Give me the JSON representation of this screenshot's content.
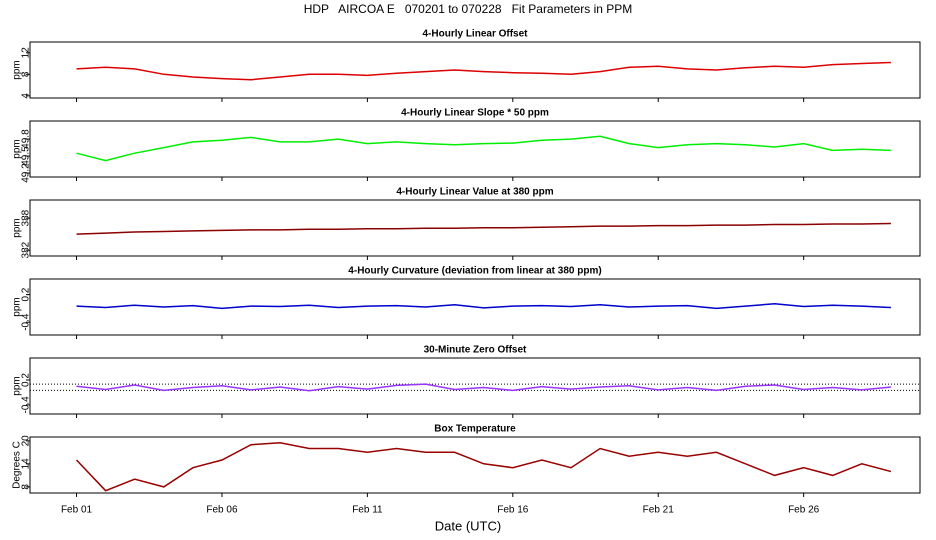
{
  "title": "HDP   AIRCOA E   070201 to 070228   Fit Parameters in PPM",
  "xlabel": "Date (UTC)",
  "xlim": [
    -1.6,
    29
  ],
  "xticks": [
    {
      "value": 0,
      "label": "Feb 01"
    },
    {
      "value": 5,
      "label": "Feb 06"
    },
    {
      "value": 10,
      "label": "Feb 11"
    },
    {
      "value": 15,
      "label": "Feb 16"
    },
    {
      "value": 20,
      "label": "Feb 21"
    },
    {
      "value": 25,
      "label": "Feb 26"
    }
  ],
  "chart_data": [
    {
      "type": "line",
      "title": "4-Hourly Linear Offset",
      "ylabel": "ppm",
      "color": "#dd0000",
      "ylim": [
        3.6,
        14
      ],
      "yticks": [
        4,
        8,
        12
      ],
      "x": [
        0,
        1,
        2,
        3,
        4,
        5,
        6,
        7,
        8,
        9,
        10,
        11,
        12,
        13,
        14,
        15,
        16,
        17,
        18,
        19,
        20,
        21,
        22,
        23,
        24,
        25,
        26,
        27,
        28
      ],
      "values": [
        9,
        9.3,
        9,
        8,
        7.5,
        7.2,
        7,
        7.5,
        8,
        8,
        7.8,
        8.2,
        8.5,
        8.8,
        8.5,
        8.3,
        8.2,
        8,
        8.5,
        9.3,
        9.5,
        9,
        8.8,
        9.2,
        9.5,
        9.3,
        9.8,
        10,
        10.2
      ]
    },
    {
      "type": "line",
      "title": "4-Hourly Linear Slope * 50 ppm",
      "ylabel": "ppm",
      "color": "#00ee00",
      "ylim": [
        49.13,
        50.12
      ],
      "yticks": [
        49.2,
        49.5,
        49.8
      ],
      "x": [
        0,
        1,
        2,
        3,
        4,
        5,
        6,
        7,
        8,
        9,
        10,
        11,
        12,
        13,
        14,
        15,
        16,
        17,
        18,
        19,
        20,
        21,
        22,
        23,
        24,
        25,
        26,
        27,
        28
      ],
      "values": [
        49.55,
        49.42,
        49.55,
        49.65,
        49.75,
        49.78,
        49.83,
        49.75,
        49.75,
        49.8,
        49.72,
        49.75,
        49.72,
        49.7,
        49.72,
        49.73,
        49.78,
        49.8,
        49.85,
        49.72,
        49.65,
        49.7,
        49.72,
        49.7,
        49.66,
        49.72,
        49.6,
        49.62,
        49.6
      ]
    },
    {
      "type": "line",
      "title": "4-Hourly Linear Value at 380 ppm",
      "ylabel": "ppm",
      "color": "#8b0000",
      "ylim": [
        380.9,
        391.4
      ],
      "yticks": [
        382,
        388
      ],
      "x": [
        0,
        1,
        2,
        3,
        4,
        5,
        6,
        7,
        8,
        9,
        10,
        11,
        12,
        13,
        14,
        15,
        16,
        17,
        18,
        19,
        20,
        21,
        22,
        23,
        24,
        25,
        26,
        27,
        28
      ],
      "values": [
        385.0,
        385.2,
        385.4,
        385.5,
        385.6,
        385.7,
        385.8,
        385.8,
        385.9,
        385.9,
        386.0,
        386.0,
        386.1,
        386.1,
        386.2,
        386.2,
        386.3,
        386.4,
        386.5,
        386.5,
        386.6,
        386.6,
        386.7,
        386.7,
        386.8,
        386.8,
        386.9,
        386.9,
        387.0
      ]
    },
    {
      "type": "line",
      "title": "4-Hourly Curvature (deviation from linear at 380 ppm)",
      "ylabel": "ppm",
      "color": "#0000cc",
      "ylim": [
        -0.68,
        0.54
      ],
      "yticks": [
        -0.4,
        0.2
      ],
      "x": [
        0,
        1,
        2,
        3,
        4,
        5,
        6,
        7,
        8,
        9,
        10,
        11,
        12,
        13,
        14,
        15,
        16,
        17,
        18,
        19,
        20,
        21,
        22,
        23,
        24,
        25,
        26,
        27,
        28
      ],
      "values": [
        -0.05,
        -0.08,
        -0.03,
        -0.07,
        -0.04,
        -0.1,
        -0.05,
        -0.06,
        -0.03,
        -0.08,
        -0.05,
        -0.04,
        -0.07,
        -0.02,
        -0.09,
        -0.05,
        -0.04,
        -0.06,
        -0.02,
        -0.07,
        -0.05,
        -0.04,
        -0.1,
        -0.05,
        0.0,
        -0.06,
        -0.03,
        -0.05,
        -0.08
      ]
    },
    {
      "type": "line",
      "title": "30-Minute Zero Offset",
      "ylabel": "ppm",
      "color": "#9933ff",
      "ylim": [
        -0.62,
        0.73
      ],
      "yticks": [
        -0.4,
        0.2
      ],
      "reference_lines": [
        0.1,
        -0.05
      ],
      "x": [
        0,
        1,
        2,
        3,
        4,
        5,
        6,
        7,
        8,
        9,
        10,
        11,
        12,
        13,
        14,
        15,
        16,
        17,
        18,
        19,
        20,
        21,
        22,
        23,
        24,
        25,
        26,
        27,
        28
      ],
      "values": [
        0.05,
        -0.03,
        0.08,
        -0.05,
        0.02,
        0.06,
        -0.04,
        0.03,
        -0.06,
        0.04,
        -0.02,
        0.07,
        0.1,
        -0.03,
        0.02,
        -0.05,
        0.04,
        -0.02,
        0.03,
        0.06,
        -0.04,
        0.02,
        -0.05,
        0.05,
        0.08,
        -0.03,
        0.02,
        -0.04,
        0.03
      ]
    },
    {
      "type": "line",
      "title": "Box Temperature",
      "ylabel": "Degrees C",
      "color": "#990000",
      "ylim": [
        6.4,
        21
      ],
      "yticks": [
        8,
        14,
        20
      ],
      "x": [
        0,
        1,
        2,
        3,
        4,
        5,
        6,
        7,
        8,
        9,
        10,
        11,
        12,
        13,
        14,
        15,
        16,
        17,
        18,
        19,
        20,
        21,
        22,
        23,
        24,
        25,
        26,
        27,
        28
      ],
      "values": [
        15,
        7,
        10,
        8,
        13,
        15,
        19,
        19.5,
        18,
        18,
        17,
        18,
        17,
        17,
        14,
        13,
        15,
        13,
        18,
        16,
        17,
        16,
        17,
        14,
        11,
        13,
        11,
        14,
        12
      ]
    }
  ]
}
